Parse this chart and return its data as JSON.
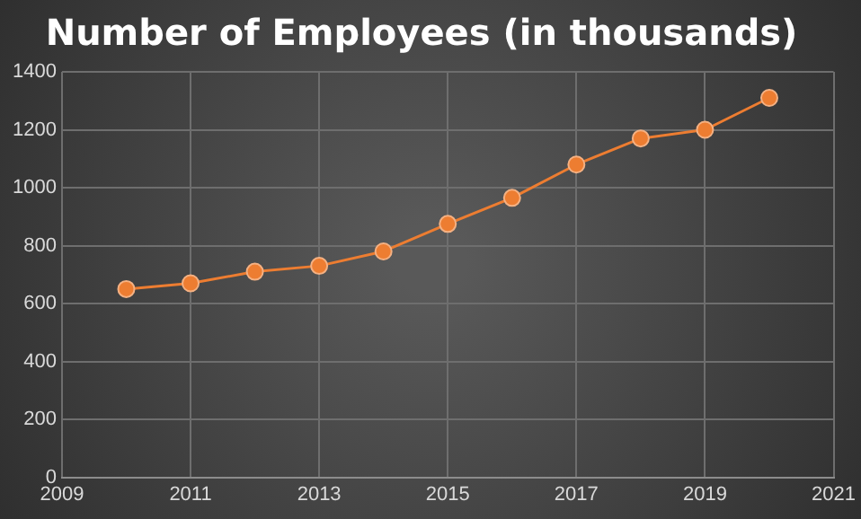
{
  "chart_data": {
    "type": "line",
    "title": "Number of Employees (in thousands)",
    "x": [
      2010,
      2011,
      2012,
      2013,
      2014,
      2015,
      2016,
      2017,
      2018,
      2019,
      2020
    ],
    "series": [
      {
        "color": "#ed7d31",
        "values": [
          650,
          670,
          710,
          730,
          780,
          875,
          965,
          1080,
          1170,
          1200,
          1310
        ]
      }
    ],
    "xlim": [
      2009,
      2021
    ],
    "xticks": [
      2009,
      2011,
      2013,
      2015,
      2017,
      2019,
      2021
    ],
    "ylim": [
      0,
      1400
    ],
    "yticks": [
      0,
      200,
      400,
      600,
      800,
      1000,
      1200,
      1400
    ],
    "grid": true,
    "legend": false,
    "marker": "circle",
    "line_style": "solid"
  }
}
